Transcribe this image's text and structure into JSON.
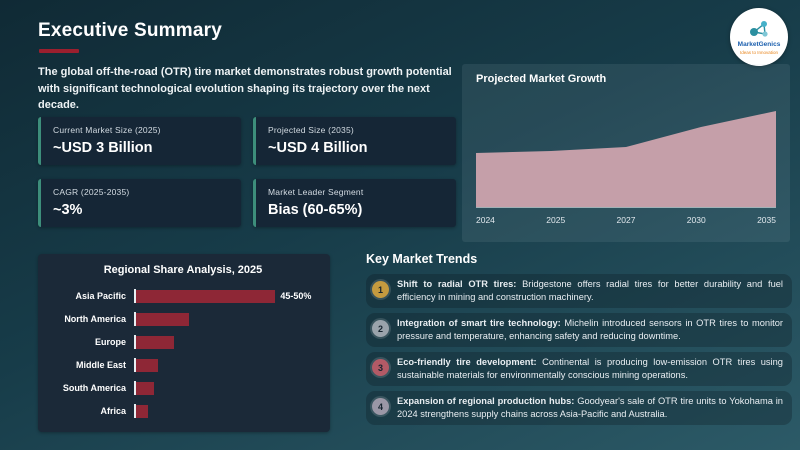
{
  "theme": {
    "background_top": "#102a35",
    "background_bottom": "#2c5a67",
    "accent_red": "#9b1f2e",
    "card_bg": "#152636",
    "card_accent": "#3d8e7b",
    "panel_bg": "#1b2938",
    "area_fill": "#c59fa9",
    "bar_color": "#8e2736"
  },
  "header": {
    "title": "Executive Summary",
    "logo_name": "MarketGenics",
    "logo_tagline": "Ideas to Innovation"
  },
  "intro": "The global off-the-road (OTR) tire market demonstrates robust growth potential with significant technological evolution shaping its trajectory over the next decade.",
  "stat_cards": [
    {
      "label": "Current Market Size (2025)",
      "value": "~USD 3 Billion"
    },
    {
      "label": "Projected Size (2035)",
      "value": "~USD 4 Billion"
    },
    {
      "label": "CAGR (2025-2035)",
      "value": "~3%"
    },
    {
      "label": "Market Leader Segment",
      "value": "Bias (60-65%)"
    }
  ],
  "chart_data": [
    {
      "type": "area",
      "title": "Projected Market Growth",
      "x": [
        "2024",
        "2025",
        "2027",
        "2030",
        "2035"
      ],
      "values": [
        2.95,
        3.0,
        3.1,
        3.6,
        4.0
      ],
      "units": "USD Billion (approx., estimated from shape)",
      "xlabel": "",
      "ylabel": "",
      "ylim": [
        1.6,
        4.4
      ],
      "grid": false,
      "legend": false,
      "y_axis_visible": false,
      "fill_color": "#c59fa9"
    },
    {
      "type": "bar",
      "orientation": "horizontal",
      "title": "Regional Share Analysis, 2025",
      "categories": [
        "Asia Pacific",
        "North America",
        "Europe",
        "Middle East",
        "South America",
        "Africa"
      ],
      "values": [
        47.5,
        18,
        13,
        7.5,
        6,
        4
      ],
      "value_labels": [
        "45-50%",
        "",
        "",
        "",
        "",
        ""
      ],
      "units": "% share (approx., only Asia Pacific labeled)",
      "xlim": [
        0,
        50
      ],
      "grid": false,
      "legend": false,
      "bar_color": "#8e2736"
    }
  ],
  "trends": {
    "title": "Key Market Trends",
    "items": [
      {
        "number": "1",
        "circle_color": "#c49a3f",
        "lead": "Shift to radial OTR tires:",
        "text": "Bridgestone offers radial tires for better durability and fuel efficiency in mining and construction machinery."
      },
      {
        "number": "2",
        "circle_color": "#9aa3ab",
        "lead": "Integration of smart tire technology:",
        "text": "Michelin introduced sensors in OTR tires to monitor pressure and temperature, enhancing safety and reducing downtime."
      },
      {
        "number": "3",
        "circle_color": "#b25a66",
        "lead": "Eco-friendly tire development:",
        "text": "Continental is producing low-emission OTR tires using sustainable materials for environmentally conscious mining operations."
      },
      {
        "number": "4",
        "circle_color": "#9b97a6",
        "lead": "Expansion of regional production hubs:",
        "text": "Goodyear's sale of OTR tire units to Yokohama in 2024 strengthens supply chains across Asia-Pacific and Australia."
      }
    ]
  }
}
